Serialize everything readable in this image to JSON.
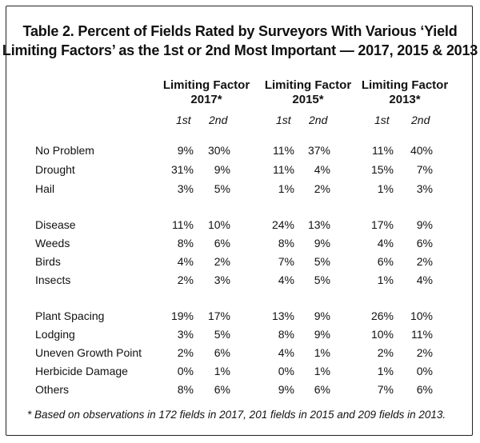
{
  "title_line1": "Table 2. Percent of Fields Rated by Surveyors With Various ‘Yield",
  "title_line2": "Limiting Factors’ as the 1st or 2nd Most Important — 2017, 2015 & 2013",
  "column_groups": [
    {
      "line1": "Limiting Factor",
      "line2": "2017*"
    },
    {
      "line1": "Limiting Factor",
      "line2": "2015*"
    },
    {
      "line1": "Limiting Factor",
      "line2": "2013*"
    }
  ],
  "subheaders": [
    "1st",
    "2nd"
  ],
  "rows": [
    {
      "label": "No Problem",
      "values": [
        "9%",
        "30%",
        "11%",
        "37%",
        "11%",
        "40%"
      ]
    },
    {
      "label": "Drought",
      "values": [
        "31%",
        "9%",
        "11%",
        "4%",
        "15%",
        "7%"
      ]
    },
    {
      "label": "Hail",
      "values": [
        "3%",
        "5%",
        "1%",
        "2%",
        "1%",
        "3%"
      ]
    },
    {
      "label": "Disease",
      "values": [
        "11%",
        "10%",
        "24%",
        "13%",
        "17%",
        "9%"
      ]
    },
    {
      "label": "Weeds",
      "values": [
        "8%",
        "6%",
        "8%",
        "9%",
        "4%",
        "6%"
      ]
    },
    {
      "label": "Birds",
      "values": [
        "4%",
        "2%",
        "7%",
        "5%",
        "6%",
        "2%"
      ]
    },
    {
      "label": "Insects",
      "values": [
        "2%",
        "3%",
        "4%",
        "5%",
        "1%",
        "4%"
      ]
    },
    {
      "label": "Plant Spacing",
      "values": [
        "19%",
        "17%",
        "13%",
        "9%",
        "26%",
        "10%"
      ]
    },
    {
      "label": "Lodging",
      "values": [
        "3%",
        "5%",
        "8%",
        "9%",
        "10%",
        "11%"
      ]
    },
    {
      "label": "Uneven Growth Point",
      "values": [
        "2%",
        "6%",
        "4%",
        "1%",
        "2%",
        "2%"
      ]
    },
    {
      "label": "Herbicide Damage",
      "values": [
        "0%",
        "1%",
        "0%",
        "1%",
        "1%",
        "0%"
      ]
    },
    {
      "label": "Others",
      "values": [
        "8%",
        "6%",
        "9%",
        "6%",
        "7%",
        "6%"
      ]
    }
  ],
  "footnote": "* Based on observations in 172 fields in 2017, 201 fields in 2015 and 209 fields in 2013."
}
